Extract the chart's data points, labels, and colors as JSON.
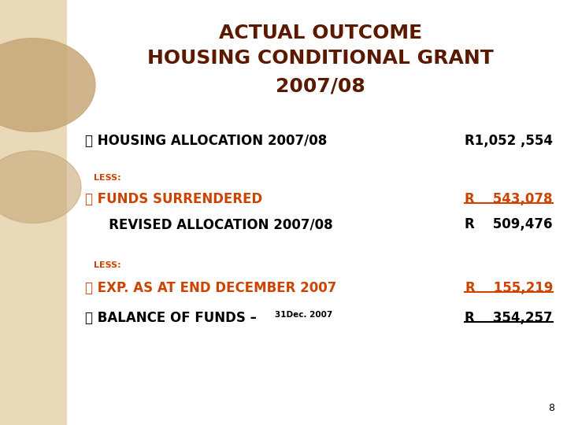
{
  "title_line1": "ACTUAL OUTCOME",
  "title_line2": "HOUSING CONDITIONAL GRANT",
  "title_line3": "2007/08",
  "title_color": "#5B1A00",
  "bg_color": "#FFFFFF",
  "left_panel_color": "#E8D9B8",
  "left_circle_color": "#C8A878",
  "row1_label": "⨽ HOUSING ALLOCATION 2007/08",
  "row1_value": "R1,052 ,554",
  "row1_label_color": "#000000",
  "row1_value_color": "#000000",
  "less1_label": "LESS:",
  "less1_color": "#CC4400",
  "row2_label": "⨽ FUNDS SURRENDERED",
  "row2_value": "R    543,078",
  "row2_label_color": "#CC4400",
  "row2_value_color": "#CC4400",
  "row3_label": "   REVISED ALLOCATION 2007/08",
  "row3_value": "R    509,476",
  "row3_label_color": "#000000",
  "row3_value_color": "#000000",
  "less2_label": "LESS:",
  "less2_color": "#CC4400",
  "row4_label": "⨽ EXP. AS AT END DECEMBER 2007",
  "row4_value": "R    155,219",
  "row4_label_color": "#CC4400",
  "row4_value_color": "#CC4400",
  "row5_label_main": "⨽ BALANCE OF FUNDS – ",
  "row5_label_sub": "31Dec. 2007",
  "row5_value": "R    354,257",
  "row5_label_color": "#000000",
  "row5_value_color": "#000000",
  "page_num": "8",
  "page_num_color": "#000000"
}
